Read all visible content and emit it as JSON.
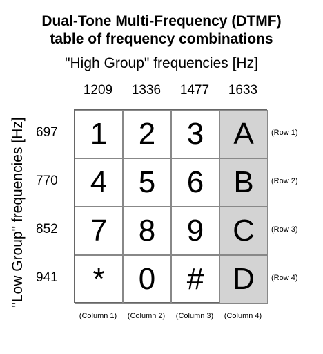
{
  "title_line1": "Dual-Tone Multi-Frequency (DTMF)",
  "title_line2": "table of frequency combinations",
  "high_group_label": "\"High Group\" frequencies [Hz]",
  "low_group_label": "\"Low Group\" frequencies [Hz]",
  "high_frequencies": [
    "1209",
    "1336",
    "1477",
    "1633"
  ],
  "low_frequencies": [
    "697",
    "770",
    "852",
    "941"
  ],
  "keys": [
    [
      "1",
      "2",
      "3",
      "A"
    ],
    [
      "4",
      "5",
      "6",
      "B"
    ],
    [
      "7",
      "8",
      "9",
      "C"
    ],
    [
      "*",
      "0",
      "#",
      "D"
    ]
  ],
  "row_labels": [
    "(Row 1)",
    "(Row 2)",
    "(Row 3)",
    "(Row 4)"
  ],
  "column_labels": [
    "(Column 1)",
    "(Column 2)",
    "(Column 3)",
    "(Column 4)"
  ],
  "colors": {
    "shaded_column": "#d3d3d3",
    "grid_border": "#888888"
  }
}
